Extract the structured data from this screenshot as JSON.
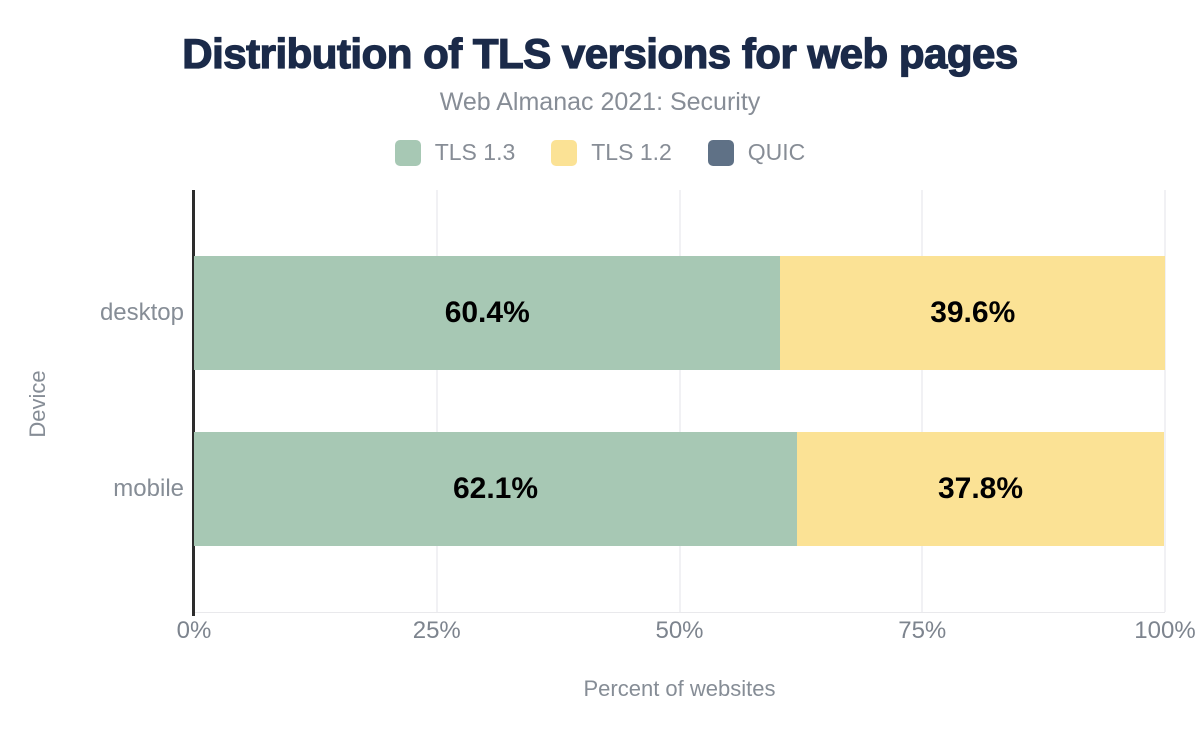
{
  "colors": {
    "background": "#ffffff",
    "title_text": "#1b2a49",
    "muted_text": "#868d96",
    "tick_text": "#7d848e",
    "value_label_text": "#000000",
    "gridline": "#f1f1f4",
    "axis_line": "#2c2c2c"
  },
  "chart_data": {
    "type": "bar",
    "variant": "horizontal-stacked",
    "title": "Distribution of TLS versions for web pages",
    "subtitle": "Web Almanac 2021: Security",
    "categories": [
      "desktop",
      "mobile"
    ],
    "series": [
      {
        "name": "TLS 1.3",
        "color": "#a7c8b4",
        "values": [
          60.4,
          62.1
        ],
        "labels": [
          "60.4%",
          "62.1%"
        ]
      },
      {
        "name": "TLS 1.2",
        "color": "#fbe295",
        "values": [
          39.6,
          37.8
        ],
        "labels": [
          "39.6%",
          "37.8%"
        ]
      },
      {
        "name": "QUIC",
        "color": "#5f7186",
        "values": [
          0,
          0
        ],
        "labels": [
          "",
          ""
        ]
      }
    ],
    "xlabel": "Percent of websites",
    "ylabel": "Device",
    "xlim": [
      0,
      100
    ],
    "x_ticks": [
      {
        "value": 0,
        "label": "0%"
      },
      {
        "value": 25,
        "label": "25%"
      },
      {
        "value": 50,
        "label": "50%"
      },
      {
        "value": 75,
        "label": "75%"
      },
      {
        "value": 100,
        "label": "100%"
      }
    ],
    "grid": "vertical-gridlines-on",
    "legend_position": "top"
  }
}
